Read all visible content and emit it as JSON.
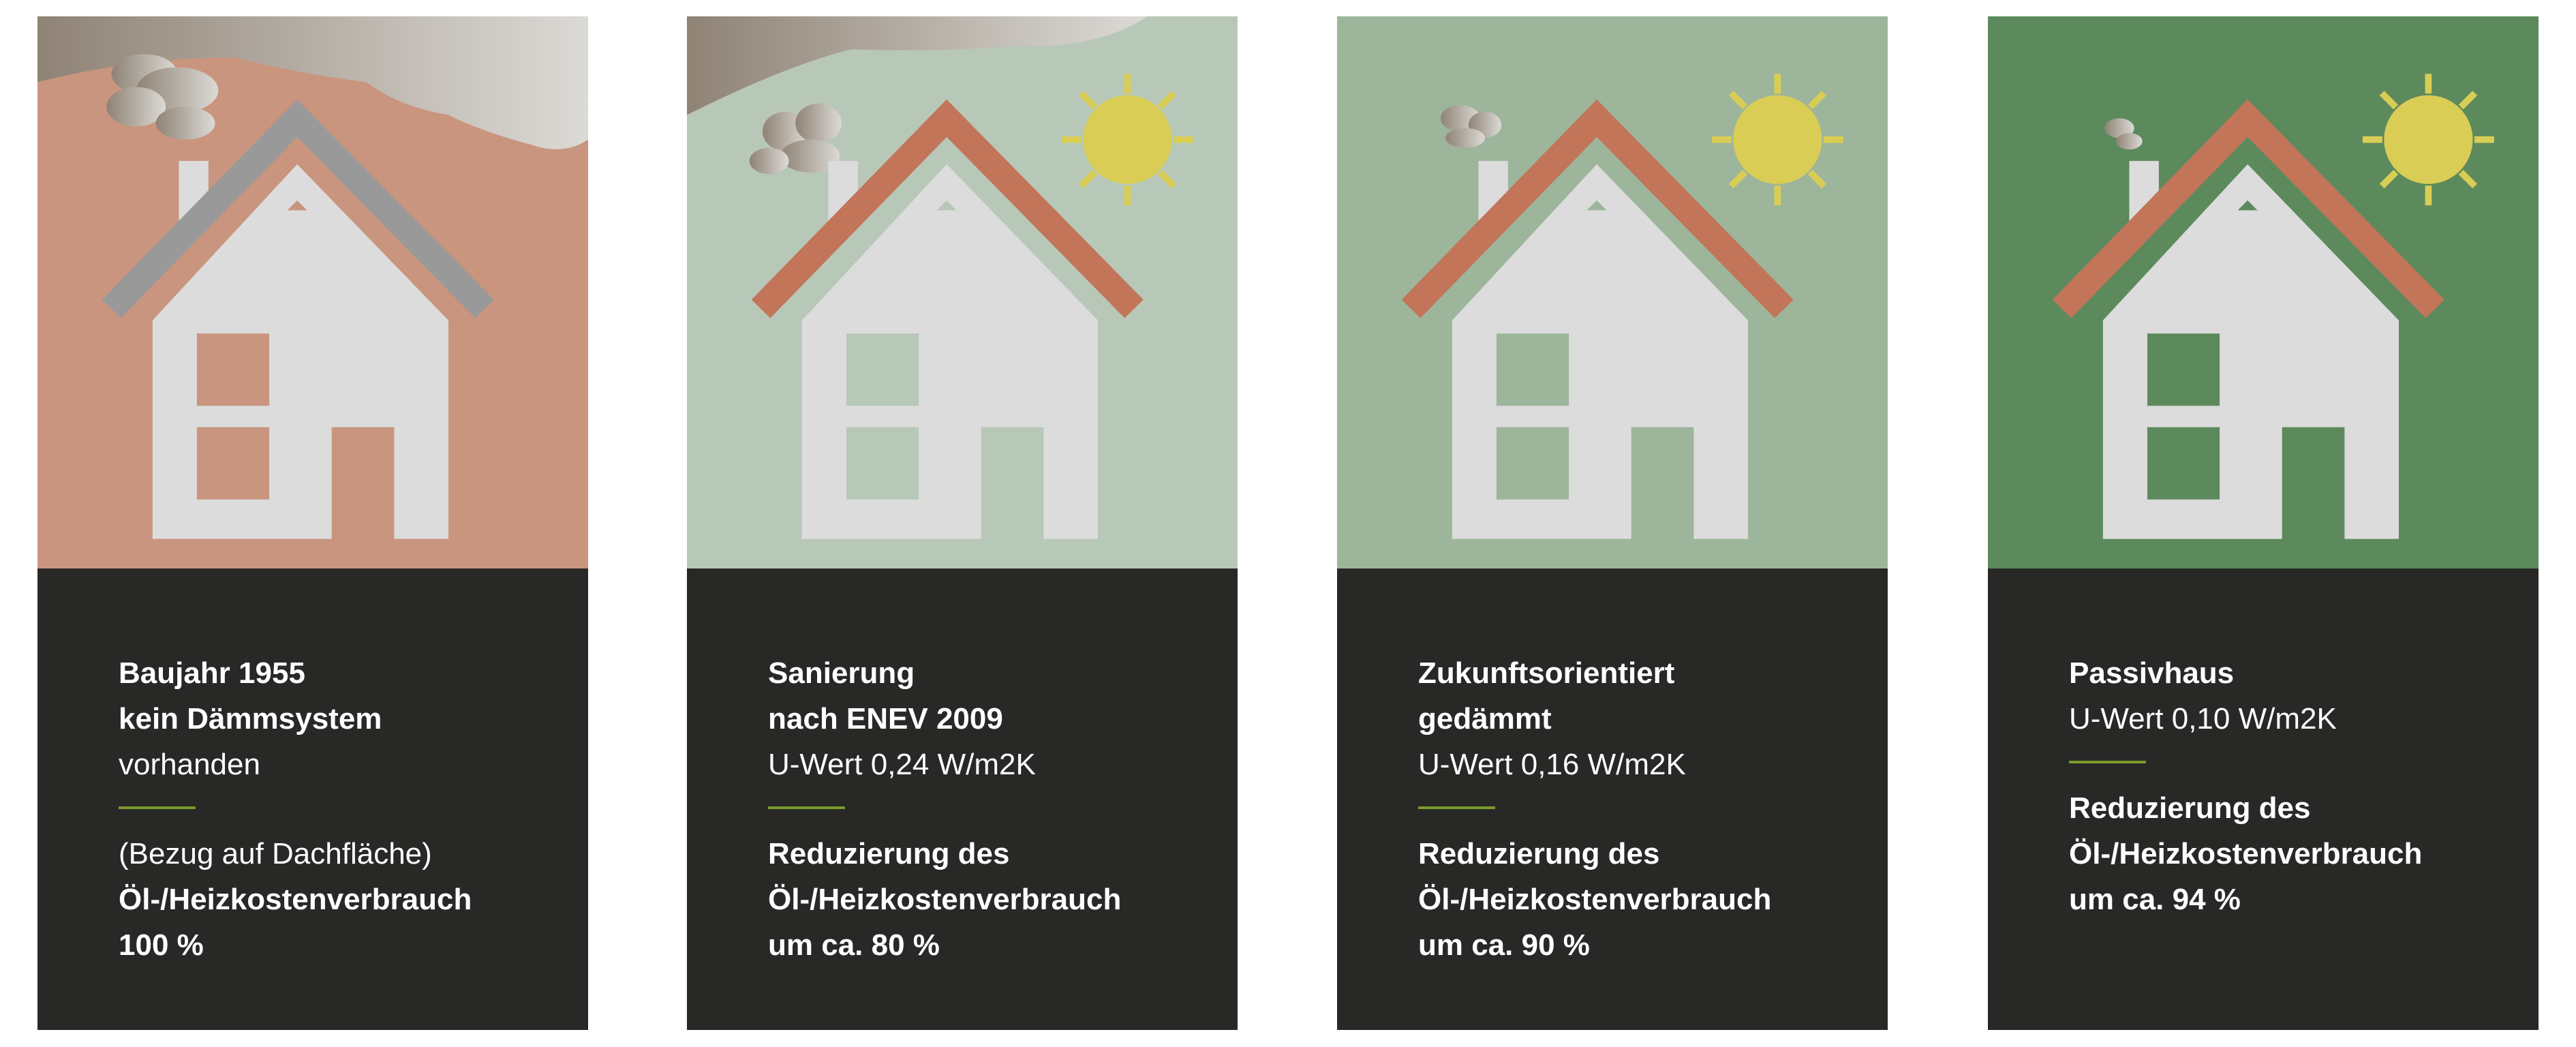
{
  "colors": {
    "card_text_bg": "#282826",
    "divider": "#7a9a2a",
    "house": "#dcdcdc",
    "sun": "#d9cd55"
  },
  "cards": [
    {
      "bg": "#c9957e",
      "roof": "#999999",
      "sun": false,
      "smoke": "heavy",
      "top": [
        {
          "text": "Baujahr 1955",
          "bold": true
        },
        {
          "text": "kein Dämmsystem",
          "bold": true
        },
        {
          "text": "vorhanden",
          "bold": false
        }
      ],
      "bottom": [
        {
          "text": "(Bezug auf Dachfläche)",
          "bold": false
        },
        {
          "text": "Öl-/Heizkostenverbrauch",
          "bold": true
        },
        {
          "text": "100 %",
          "bold": true
        }
      ]
    },
    {
      "bg": "#b8c8b8",
      "roof": "#c27559",
      "sun": true,
      "smoke": "medium",
      "top": [
        {
          "text": "Sanierung",
          "bold": true
        },
        {
          "text": "nach ENEV 2009",
          "bold": true
        },
        {
          "text": "U-Wert 0,24 W/m2K",
          "bold": false
        }
      ],
      "bottom": [
        {
          "text": "Reduzierung des",
          "bold": true
        },
        {
          "text": "Öl-/Heizkostenverbrauch",
          "bold": true
        },
        {
          "text": "um ca. 80 %",
          "bold": true
        }
      ]
    },
    {
      "bg": "#9db59a",
      "roof": "#c27559",
      "sun": true,
      "smoke": "small",
      "top": [
        {
          "text": "Zukunftsorientiert",
          "bold": true
        },
        {
          "text": "gedämmt",
          "bold": true
        },
        {
          "text": "U-Wert 0,16 W/m2K",
          "bold": false
        }
      ],
      "bottom": [
        {
          "text": "Reduzierung des",
          "bold": true
        },
        {
          "text": "Öl-/Heizkostenverbrauch",
          "bold": true
        },
        {
          "text": "um ca. 90 %",
          "bold": true
        }
      ]
    },
    {
      "bg": "#5c8a5c",
      "roof": "#c27559",
      "sun": true,
      "smoke": "tiny",
      "top": [
        {
          "text": "Passivhaus",
          "bold": true
        },
        {
          "text": "U-Wert 0,10 W/m2K",
          "bold": false
        }
      ],
      "bottom": [
        {
          "text": "Reduzierung des",
          "bold": true
        },
        {
          "text": "Öl-/Heizkostenverbrauch",
          "bold": true
        },
        {
          "text": "um ca. 94 %",
          "bold": true
        }
      ]
    }
  ]
}
